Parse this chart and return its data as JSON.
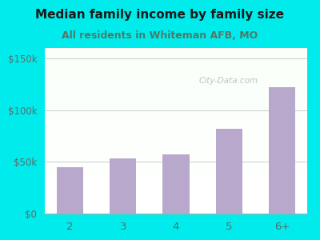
{
  "categories": [
    "2",
    "3",
    "4",
    "5",
    "6+"
  ],
  "values": [
    45000,
    53000,
    57000,
    82000,
    122000
  ],
  "bar_color": "#b8a8cc",
  "title": "Median family income by family size",
  "subtitle": "All residents in Whiteman AFB, MO",
  "title_color": "#1a1a1a",
  "subtitle_color": "#4a7a6a",
  "outer_bg": "#00ecec",
  "ylim": [
    0,
    160000
  ],
  "yticks": [
    0,
    50000,
    100000,
    150000
  ],
  "ytick_labels": [
    "$0",
    "$50k",
    "$100k",
    "$150k"
  ],
  "watermark": "City-Data.com",
  "watermark_color": "#aaaaaa",
  "tick_color": "#666666",
  "grid_color": "#cccccc"
}
